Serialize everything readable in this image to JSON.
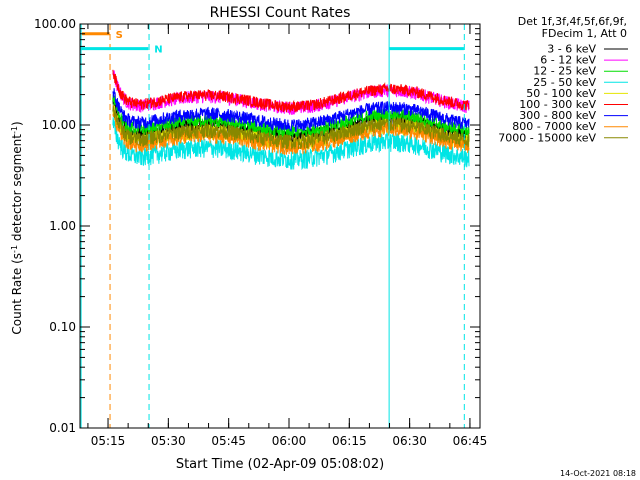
{
  "chart_data": {
    "type": "line",
    "title": "RHESSI Count Rates",
    "xlabel": "Start Time (02-Apr-09 05:08:02)",
    "ylabel_main": "Count Rate (s",
    "ylabel_sup1": "-1",
    "ylabel_mid": " detector segment",
    "ylabel_sup2": "-1",
    "ylabel_end": ")",
    "x_ticks": [
      "05:15",
      "05:30",
      "05:45",
      "06:00",
      "06:15",
      "06:30",
      "06:45"
    ],
    "x_tick_minutes": [
      15,
      30,
      45,
      60,
      75,
      90,
      105
    ],
    "xlim_minutes": [
      8.03,
      107.5
    ],
    "y_scale": "log",
    "ylim": [
      0.01,
      100
    ],
    "y_ticks": [
      "0.01",
      "0.10",
      "1.00",
      "10.00",
      "100.00"
    ],
    "y_tick_values": [
      0.01,
      0.1,
      1,
      10,
      100
    ],
    "legend_header": [
      "Det 1f,3f,4f,5f,6f,9f,",
      "FDecim 1, Att 0"
    ],
    "series": [
      {
        "name": "3 - 6 keV",
        "color": "#000000",
        "base": 8.8,
        "amp": 0.18
      },
      {
        "name": "6 - 12 keV",
        "color": "#ff00ff",
        "base": 17.0,
        "amp": 0.15
      },
      {
        "name": "12 - 25 keV",
        "color": "#00dd00",
        "base": 9.8,
        "amp": 0.16
      },
      {
        "name": "25 - 50 keV",
        "color": "#00e5e5",
        "base": 5.3,
        "amp": 0.22
      },
      {
        "name": "50 - 100 keV",
        "color": "#e5e500",
        "base": 7.6,
        "amp": 0.17
      },
      {
        "name": "100 - 300 keV",
        "color": "#ff0000",
        "base": 17.5,
        "amp": 0.13
      },
      {
        "name": "300 - 800 keV",
        "color": "#0000ff",
        "base": 11.5,
        "amp": 0.15
      },
      {
        "name": "800 - 7000 keV",
        "color": "#ff8800",
        "base": 7.0,
        "amp": 0.17
      },
      {
        "name": "7000 - 15000 keV",
        "color": "#888800",
        "base": 7.9,
        "amp": 0.17
      }
    ],
    "data_start_minute": 16.2,
    "data_end_minute": 104.8,
    "markers": [
      {
        "label": "S",
        "color": "#ff8800",
        "bar_start_minute": 8.5,
        "bar_end_minute": 15.4,
        "bar_y": 80
      },
      {
        "label": "N",
        "color": "#00e5e5",
        "bar_start_minute": 8.0,
        "bar_end_minute": 25.0,
        "bar_y": 57,
        "bar2_start_minute": 85.0,
        "bar2_end_minute": 103.5
      }
    ],
    "vlines": [
      {
        "minute": 8.3,
        "color": "#00e5e5",
        "style": "solid"
      },
      {
        "minute": 15.5,
        "color": "#ff8800",
        "style": "dashed"
      },
      {
        "minute": 25.2,
        "color": "#00e5e5",
        "style": "dashed"
      },
      {
        "minute": 84.9,
        "color": "#00e5e5",
        "style": "solid"
      },
      {
        "minute": 103.6,
        "color": "#00e5e5",
        "style": "dashed"
      }
    ],
    "grid": false,
    "legend_position": "right"
  },
  "footer": {
    "timestamp": "14-Oct-2021 08:18"
  }
}
